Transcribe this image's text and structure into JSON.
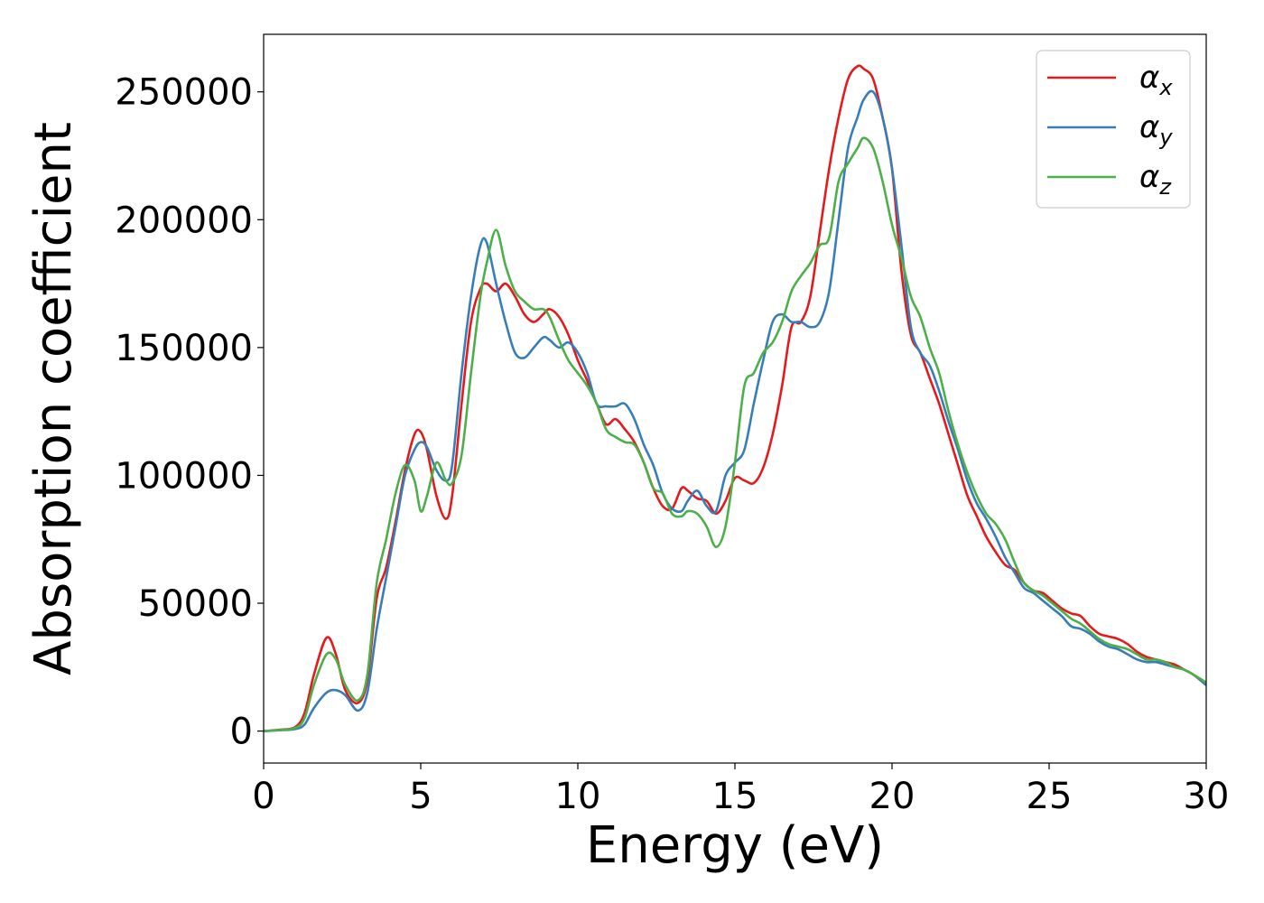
{
  "chart_data": {
    "type": "line",
    "xlabel": "Energy (eV)",
    "ylabel": "Absorption coefficient",
    "xlim": [
      0,
      30
    ],
    "ylim": [
      -12500,
      272500
    ],
    "xticks": [
      0,
      5,
      10,
      15,
      20,
      25,
      30
    ],
    "yticks": [
      0,
      50000,
      100000,
      150000,
      200000,
      250000
    ],
    "grid": false,
    "legend_position": "top-right",
    "series": [
      {
        "name": "α_x",
        "name_base": "α",
        "name_sub": "x",
        "color": "#e41a1c",
        "x": [
          0,
          0.5,
          1.0,
          1.3,
          1.6,
          2.0,
          2.3,
          2.6,
          3.0,
          3.3,
          3.6,
          3.9,
          4.2,
          4.5,
          4.8,
          5.0,
          5.2,
          5.5,
          5.8,
          6.0,
          6.3,
          6.6,
          6.9,
          7.1,
          7.4,
          7.7,
          8.0,
          8.3,
          8.6,
          8.9,
          9.1,
          9.4,
          9.7,
          10.0,
          10.3,
          10.6,
          10.9,
          11.2,
          11.5,
          11.8,
          12.1,
          12.4,
          12.7,
          13.0,
          13.3,
          13.5,
          13.8,
          14.1,
          14.4,
          14.7,
          15.0,
          15.3,
          15.6,
          15.9,
          16.2,
          16.5,
          16.8,
          17.1,
          17.4,
          17.7,
          18.0,
          18.3,
          18.6,
          18.9,
          19.1,
          19.4,
          19.7,
          20.0,
          20.3,
          20.6,
          20.9,
          21.2,
          21.5,
          21.8,
          22.1,
          22.4,
          22.7,
          23.0,
          23.3,
          23.6,
          23.9,
          24.2,
          24.5,
          24.8,
          25.1,
          25.4,
          25.7,
          26.0,
          26.3,
          26.6,
          26.9,
          27.2,
          27.5,
          27.8,
          28.1,
          28.4,
          28.7,
          29.0,
          29.3,
          29.6,
          30.0
        ],
        "y": [
          0,
          500,
          1500,
          7000,
          22000,
          36500,
          30000,
          16000,
          11000,
          20000,
          52000,
          64000,
          82000,
          102000,
          116000,
          117000,
          110000,
          92000,
          83000,
          92000,
          128000,
          160000,
          173000,
          175000,
          172000,
          175000,
          170000,
          163000,
          160000,
          163000,
          165000,
          162000,
          155000,
          145000,
          137000,
          128000,
          120000,
          122000,
          118000,
          113000,
          105000,
          95000,
          88000,
          87000,
          95000,
          94000,
          91000,
          90000,
          85000,
          90000,
          99000,
          98000,
          97000,
          103000,
          116000,
          135000,
          158000,
          160000,
          170000,
          195000,
          220000,
          240000,
          255000,
          260000,
          259000,
          255000,
          240000,
          220000,
          180000,
          155000,
          148000,
          138000,
          128000,
          116000,
          104000,
          92000,
          84000,
          76000,
          70000,
          65000,
          63000,
          58000,
          55000,
          54000,
          51000,
          48000,
          46000,
          45000,
          41000,
          38000,
          37000,
          36000,
          34000,
          31000,
          29000,
          28000,
          27000,
          26000,
          24000,
          22000,
          18000
        ]
      },
      {
        "name": "α_y",
        "name_base": "α",
        "name_sub": "y",
        "color": "#377eb8",
        "x": [
          0,
          0.5,
          1.0,
          1.3,
          1.6,
          2.0,
          2.3,
          2.6,
          3.0,
          3.3,
          3.6,
          3.9,
          4.2,
          4.5,
          4.8,
          5.0,
          5.2,
          5.5,
          5.8,
          6.0,
          6.3,
          6.6,
          6.9,
          7.1,
          7.4,
          7.7,
          8.0,
          8.3,
          8.6,
          8.9,
          9.1,
          9.4,
          9.7,
          10.0,
          10.3,
          10.6,
          10.9,
          11.2,
          11.5,
          11.8,
          12.1,
          12.4,
          12.7,
          13.0,
          13.3,
          13.5,
          13.8,
          14.1,
          14.4,
          14.7,
          15.0,
          15.3,
          15.6,
          15.9,
          16.2,
          16.5,
          16.8,
          17.1,
          17.4,
          17.7,
          18.0,
          18.3,
          18.6,
          18.9,
          19.1,
          19.4,
          19.7,
          20.0,
          20.3,
          20.6,
          20.9,
          21.2,
          21.5,
          21.8,
          22.1,
          22.4,
          22.7,
          23.0,
          23.3,
          23.6,
          23.9,
          24.2,
          24.5,
          24.8,
          25.1,
          25.4,
          25.7,
          26.0,
          26.3,
          26.6,
          26.9,
          27.2,
          27.5,
          27.8,
          28.1,
          28.4,
          28.7,
          29.0,
          29.3,
          29.6,
          30.0
        ],
        "y": [
          0,
          300,
          800,
          2500,
          9000,
          15000,
          16000,
          14000,
          8000,
          15000,
          40000,
          60000,
          80000,
          100000,
          110000,
          113000,
          111000,
          102000,
          98000,
          104000,
          140000,
          170000,
          190000,
          191000,
          175000,
          160000,
          148000,
          146000,
          150000,
          154000,
          153000,
          150000,
          152000,
          148000,
          140000,
          128000,
          127000,
          127000,
          128000,
          122000,
          112000,
          104000,
          93000,
          87000,
          86000,
          90000,
          94000,
          88000,
          86000,
          100000,
          105000,
          110000,
          128000,
          145000,
          160000,
          163000,
          160000,
          160000,
          158000,
          160000,
          172000,
          200000,
          228000,
          240000,
          247000,
          250000,
          240000,
          220000,
          190000,
          158000,
          148000,
          143000,
          133000,
          121000,
          110000,
          98000,
          89000,
          83000,
          76000,
          68000,
          62000,
          56000,
          54000,
          51000,
          48000,
          45000,
          41000,
          40000,
          38000,
          35000,
          33000,
          32000,
          30000,
          28000,
          27000,
          27000,
          26000,
          25000,
          24000,
          22000,
          18000
        ]
      },
      {
        "name": "α_z",
        "name_base": "α",
        "name_sub": "z",
        "color": "#4daf4a",
        "x": [
          0,
          0.5,
          1.0,
          1.3,
          1.6,
          2.0,
          2.3,
          2.6,
          3.0,
          3.3,
          3.6,
          3.9,
          4.2,
          4.5,
          4.8,
          5.0,
          5.2,
          5.5,
          5.8,
          6.0,
          6.3,
          6.6,
          6.9,
          7.1,
          7.4,
          7.7,
          8.0,
          8.3,
          8.6,
          8.9,
          9.1,
          9.4,
          9.7,
          10.0,
          10.3,
          10.6,
          10.9,
          11.2,
          11.5,
          11.8,
          12.1,
          12.4,
          12.7,
          13.0,
          13.3,
          13.5,
          13.8,
          14.1,
          14.4,
          14.7,
          15.0,
          15.3,
          15.6,
          15.9,
          16.2,
          16.5,
          16.8,
          17.1,
          17.4,
          17.7,
          18.0,
          18.3,
          18.6,
          18.9,
          19.1,
          19.4,
          19.7,
          20.0,
          20.3,
          20.6,
          20.9,
          21.2,
          21.5,
          21.8,
          22.1,
          22.4,
          22.7,
          23.0,
          23.3,
          23.6,
          23.9,
          24.2,
          24.5,
          24.8,
          25.1,
          25.4,
          25.7,
          26.0,
          26.3,
          26.6,
          26.9,
          27.2,
          27.5,
          27.8,
          28.1,
          28.4,
          28.7,
          29.0,
          29.3,
          29.6,
          30.0
        ],
        "y": [
          0,
          400,
          1200,
          5000,
          18000,
          30000,
          28000,
          18000,
          12000,
          22000,
          58000,
          75000,
          93000,
          104000,
          98000,
          86000,
          92000,
          105000,
          98000,
          97000,
          108000,
          140000,
          170000,
          183000,
          196000,
          182000,
          172000,
          168000,
          165000,
          165000,
          162000,
          153000,
          145000,
          140000,
          135000,
          128000,
          118000,
          115000,
          113000,
          112000,
          105000,
          95000,
          93000,
          85000,
          84000,
          86000,
          85000,
          80000,
          72000,
          80000,
          105000,
          135000,
          140000,
          148000,
          152000,
          160000,
          172000,
          178000,
          183000,
          190000,
          193000,
          215000,
          222000,
          228000,
          232000,
          228000,
          215000,
          198000,
          185000,
          170000,
          162000,
          150000,
          140000,
          125000,
          112000,
          101000,
          92000,
          85000,
          81000,
          75000,
          66000,
          58000,
          55000,
          53000,
          50000,
          47000,
          44000,
          42000,
          39000,
          36000,
          34000,
          33000,
          32000,
          30000,
          28000,
          28000,
          27000,
          25000,
          24000,
          22000,
          19000
        ]
      }
    ]
  }
}
